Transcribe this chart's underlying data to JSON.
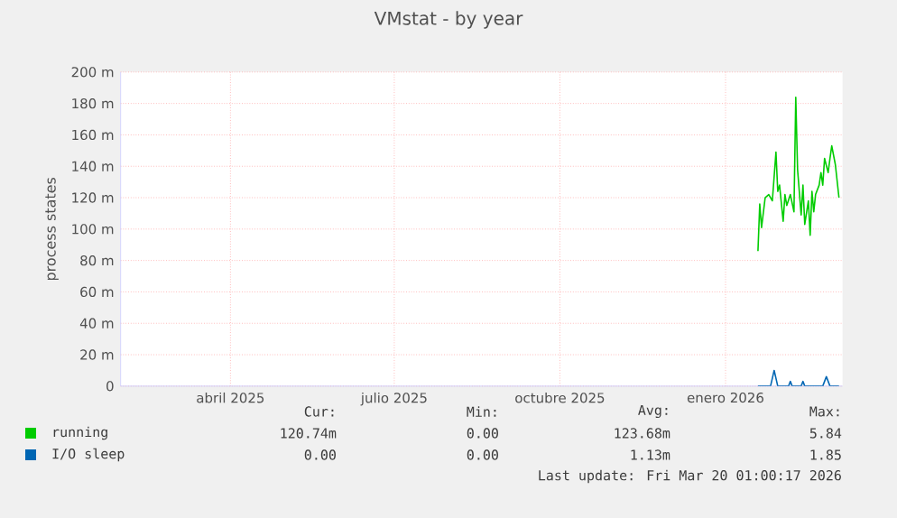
{
  "chart_data": {
    "type": "line",
    "title": "VMstat - by year",
    "ylabel": "process states",
    "xlim": [
      "2025-02-13",
      "2026-03-21"
    ],
    "ylim": [
      0,
      200
    ],
    "xticks": [
      {
        "value": "2025-04-15",
        "label": "abril 2025"
      },
      {
        "value": "2025-07-15",
        "label": "julio 2025"
      },
      {
        "value": "2025-10-15",
        "label": "octubre 2025"
      },
      {
        "value": "2026-01-15",
        "label": "enero 2026"
      }
    ],
    "yticks": [
      0,
      {
        "value": 20,
        "label": "20 m"
      },
      {
        "value": 40,
        "label": "40 m"
      },
      {
        "value": 60,
        "label": "60 m"
      },
      {
        "value": 80,
        "label": "80 m"
      },
      {
        "value": 100,
        "label": "100 m"
      },
      {
        "value": 120,
        "label": "120 m"
      },
      {
        "value": 140,
        "label": "140 m"
      },
      {
        "value": 160,
        "label": "160 m"
      },
      {
        "value": 180,
        "label": "180 m"
      },
      {
        "value": 200,
        "label": "200 m"
      }
    ],
    "grid": true,
    "legend": "bottom",
    "series": [
      {
        "name": "running",
        "color": "#00cc00",
        "x": [
          "2026-02-02",
          "2026-02-03",
          "2026-02-04",
          "2026-02-06",
          "2026-02-08",
          "2026-02-10",
          "2026-02-12",
          "2026-02-13",
          "2026-02-14",
          "2026-02-16",
          "2026-02-17",
          "2026-02-18",
          "2026-02-20",
          "2026-02-22",
          "2026-02-23",
          "2026-02-24",
          "2026-02-26",
          "2026-02-27",
          "2026-02-28",
          "2026-03-02",
          "2026-03-03",
          "2026-03-04",
          "2026-03-05",
          "2026-03-06",
          "2026-03-08",
          "2026-03-09",
          "2026-03-10",
          "2026-03-11",
          "2026-03-13",
          "2026-03-14",
          "2026-03-15",
          "2026-03-17",
          "2026-03-19"
        ],
        "values": [
          86,
          116,
          101,
          120,
          122,
          118,
          149,
          124,
          128,
          105,
          122,
          115,
          122,
          111,
          184,
          138,
          109,
          128,
          103,
          118,
          96,
          124,
          111,
          122,
          128,
          136,
          128,
          145,
          136,
          145,
          153,
          141,
          120
        ]
      },
      {
        "name": "I/O sleep",
        "color": "#0066b3",
        "x": [
          "2026-02-02",
          "2026-02-09",
          "2026-02-11",
          "2026-02-13",
          "2026-02-19",
          "2026-02-20",
          "2026-02-21",
          "2026-02-26",
          "2026-02-27",
          "2026-02-28",
          "2026-03-10",
          "2026-03-12",
          "2026-03-14",
          "2026-03-19"
        ],
        "values": [
          0,
          0,
          10,
          0,
          0,
          3,
          0,
          0,
          3,
          0,
          0,
          6,
          0,
          0
        ]
      }
    ],
    "annotations": [
      "Cur:",
      "Min:",
      "Avg:",
      "Max:",
      "120.74m",
      "0.00",
      "123.68m",
      "5.84",
      "0.00",
      "0.00",
      "1.13m",
      "1.85",
      "Last update: Fri Mar 20 01:00:17 2026"
    ]
  }
}
